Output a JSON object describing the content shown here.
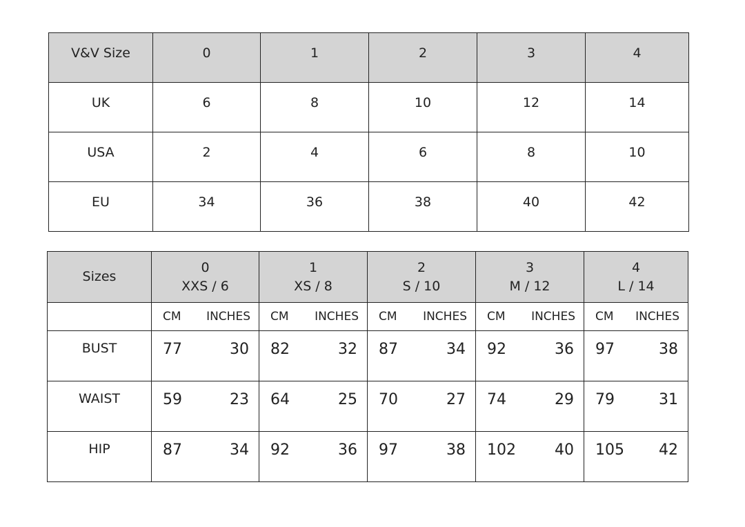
{
  "conversion_table": {
    "header": [
      "V&V Size",
      "0",
      "1",
      "2",
      "3",
      "4"
    ],
    "rows": [
      {
        "label": "UK",
        "values": [
          "6",
          "8",
          "10",
          "12",
          "14"
        ]
      },
      {
        "label": "USA",
        "values": [
          "2",
          "4",
          "6",
          "8",
          "10"
        ]
      },
      {
        "label": "EU",
        "values": [
          "34",
          "36",
          "38",
          "40",
          "42"
        ]
      }
    ]
  },
  "measurements_table": {
    "header_label": "Sizes",
    "sizes": [
      {
        "num": "0",
        "name": "XXS / 6"
      },
      {
        "num": "1",
        "name": "XS / 8"
      },
      {
        "num": "2",
        "name": "S / 10"
      },
      {
        "num": "3",
        "name": "M / 12"
      },
      {
        "num": "4",
        "name": "L / 14"
      }
    ],
    "unit_cm": "CM",
    "unit_in": "INCHES",
    "rows": [
      {
        "label": "BUST",
        "values": [
          [
            "77",
            "30"
          ],
          [
            "82",
            "32"
          ],
          [
            "87",
            "34"
          ],
          [
            "92",
            "36"
          ],
          [
            "97",
            "38"
          ]
        ]
      },
      {
        "label": "WAIST",
        "values": [
          [
            "59",
            "23"
          ],
          [
            "64",
            "25"
          ],
          [
            "70",
            "27"
          ],
          [
            "74",
            "29"
          ],
          [
            "79",
            "31"
          ]
        ]
      },
      {
        "label": "HIP",
        "values": [
          [
            "87",
            "34"
          ],
          [
            "92",
            "36"
          ],
          [
            "97",
            "38"
          ],
          [
            "102",
            "40"
          ],
          [
            "105",
            "42"
          ]
        ]
      }
    ]
  },
  "colors": {
    "header_bg": "#d4d4d4",
    "border": "#222222"
  }
}
